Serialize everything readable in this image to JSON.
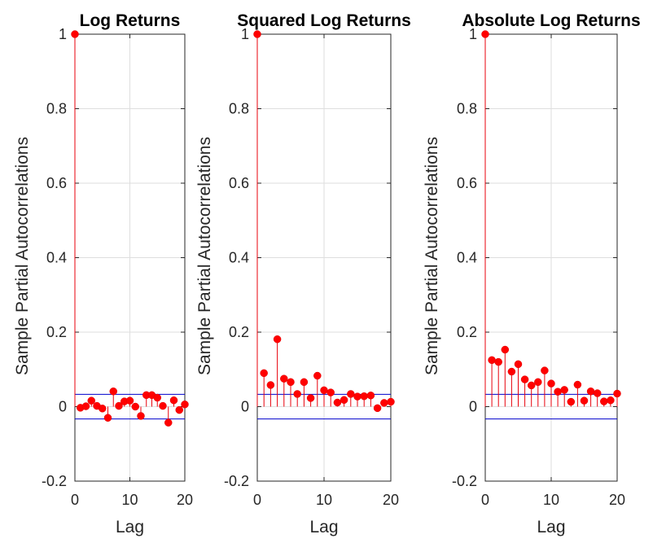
{
  "figure": {
    "ylabel": "Sample Partial Autocorrelations",
    "xlabel": "Lag"
  },
  "chart_data": [
    {
      "type": "stem",
      "title": "Log Returns",
      "xlabel": "Lag",
      "ylabel": "Sample Partial Autocorrelations",
      "xlim": [
        0,
        20
      ],
      "ylim": [
        -0.2,
        1
      ],
      "xticks": [
        0,
        10,
        20
      ],
      "xtick_labels": [
        "0",
        "10",
        "20"
      ],
      "yticks": [
        -0.2,
        0,
        0.2,
        0.4,
        0.6,
        0.8,
        1
      ],
      "ytick_labels": [
        "-0.2",
        "0",
        "0.2",
        "0.4",
        "0.6",
        "0.8",
        "1"
      ],
      "grid": true,
      "confidence_bounds": [
        0.033,
        -0.033
      ],
      "lags": [
        0,
        1,
        2,
        3,
        4,
        5,
        6,
        7,
        8,
        9,
        10,
        11,
        12,
        13,
        14,
        15,
        16,
        17,
        18,
        19,
        20
      ],
      "values": [
        1,
        -0.003,
        0.001,
        0.016,
        0.002,
        -0.005,
        -0.03,
        0.041,
        0.002,
        0.014,
        0.016,
        0,
        -0.025,
        0.031,
        0.031,
        0.024,
        0.002,
        -0.043,
        0.017,
        -0.009,
        0.006
      ]
    },
    {
      "type": "stem",
      "title": "Squared Log Returns",
      "xlabel": "Lag",
      "ylabel": "Sample Partial Autocorrelations",
      "xlim": [
        0,
        20
      ],
      "ylim": [
        -0.2,
        1
      ],
      "xticks": [
        0,
        10,
        20
      ],
      "xtick_labels": [
        "0",
        "10",
        "20"
      ],
      "yticks": [
        -0.2,
        0,
        0.2,
        0.4,
        0.6,
        0.8,
        1
      ],
      "ytick_labels": [
        "-0.2",
        "0",
        "0.2",
        "0.4",
        "0.6",
        "0.8",
        "1"
      ],
      "grid": true,
      "confidence_bounds": [
        0.033,
        -0.033
      ],
      "lags": [
        0,
        1,
        2,
        3,
        4,
        5,
        6,
        7,
        8,
        9,
        10,
        11,
        12,
        13,
        14,
        15,
        16,
        17,
        18,
        19,
        20
      ],
      "values": [
        1,
        0.09,
        0.058,
        0.181,
        0.075,
        0.066,
        0.034,
        0.066,
        0.023,
        0.083,
        0.044,
        0.038,
        0.011,
        0.018,
        0.034,
        0.027,
        0.028,
        0.03,
        -0.004,
        0.01,
        0.013
      ]
    },
    {
      "type": "stem",
      "title": "Absolute Log Returns",
      "xlabel": "Lag",
      "ylabel": "Sample Partial Autocorrelations",
      "xlim": [
        0,
        20
      ],
      "ylim": [
        -0.2,
        1
      ],
      "xticks": [
        0,
        10,
        20
      ],
      "xtick_labels": [
        "0",
        "10",
        "20"
      ],
      "yticks": [
        -0.2,
        0,
        0.2,
        0.4,
        0.6,
        0.8,
        1
      ],
      "ytick_labels": [
        "-0.2",
        "0",
        "0.2",
        "0.4",
        "0.6",
        "0.8",
        "1"
      ],
      "grid": true,
      "confidence_bounds": [
        0.033,
        -0.033
      ],
      "lags": [
        0,
        1,
        2,
        3,
        4,
        5,
        6,
        7,
        8,
        9,
        10,
        11,
        12,
        13,
        14,
        15,
        16,
        17,
        18,
        19,
        20
      ],
      "values": [
        1,
        0.125,
        0.12,
        0.153,
        0.094,
        0.114,
        0.073,
        0.057,
        0.066,
        0.097,
        0.062,
        0.04,
        0.045,
        0.013,
        0.059,
        0.016,
        0.041,
        0.036,
        0.014,
        0.017,
        0.035
      ]
    }
  ],
  "colors": {
    "stem": "#e8000b",
    "marker": "#ff0000",
    "bounds": "#0000cc",
    "grid": "#dedede",
    "axis": "#262626"
  }
}
